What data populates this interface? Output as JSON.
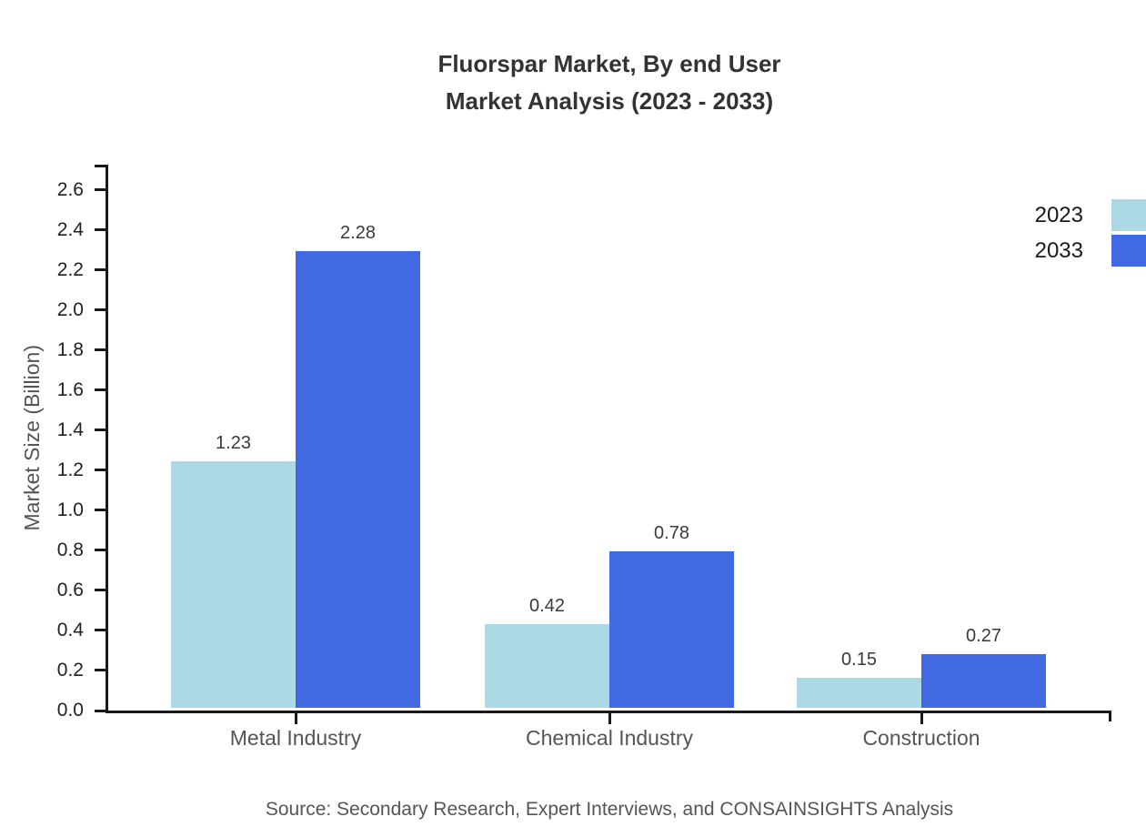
{
  "title": {
    "line1": "Fluorspar Market, By end User",
    "line2": "Market Analysis (2023 - 2033)"
  },
  "source_note": "Source: Secondary Research, Expert Interviews, and CONSAINSIGHTS Analysis",
  "chart_data": {
    "type": "bar",
    "title": "Fluorspar Market, By end User Market Analysis (2023 - 2033)",
    "categories": [
      "Metal Industry",
      "Chemical Industry",
      "Construction"
    ],
    "series": [
      {
        "name": "2023",
        "color": "#ADD8E6",
        "values": [
          1.23,
          0.42,
          0.15
        ]
      },
      {
        "name": "2033",
        "color": "#4169E1",
        "values": [
          2.28,
          0.78,
          0.27
        ]
      }
    ],
    "xlabel": "",
    "ylabel": "Market Size (Billion)",
    "ylim": [
      0,
      2.727
    ],
    "yticks": [
      0.0,
      0.2,
      0.4,
      0.6,
      0.8,
      1.0,
      1.2,
      1.4,
      1.6,
      1.8,
      2.0,
      2.2,
      2.4,
      2.6
    ],
    "grid": false,
    "legend_position": "top-right",
    "value_labels": true,
    "axis_color": "#1a1a1a"
  }
}
